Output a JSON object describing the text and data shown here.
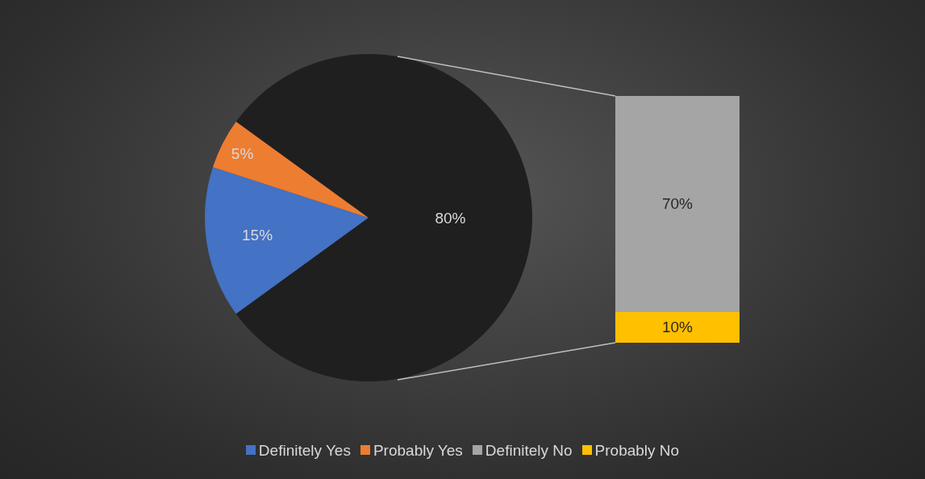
{
  "chart_data": [
    {
      "type": "pie",
      "categories": [
        "Definitely Yes",
        "Probably Yes",
        null
      ],
      "values": [
        15,
        5,
        80
      ],
      "colors": [
        "#4472c4",
        "#ed7d31",
        "#1f1f1f"
      ],
      "value_labels": [
        "15%",
        "5%",
        "80%"
      ],
      "legend": "bottom"
    },
    {
      "type": "bar",
      "stacked": true,
      "categories": [
        null
      ],
      "series": [
        {
          "name": "Probably No",
          "color": "#ffc000",
          "values": [
            10
          ],
          "value_labels": [
            "10%"
          ]
        },
        {
          "name": "Definitely No",
          "color": "#a5a5a5",
          "values": [
            70
          ],
          "value_labels": [
            "70%"
          ]
        }
      ],
      "tick_labels": false,
      "legend": "bottom"
    }
  ]
}
